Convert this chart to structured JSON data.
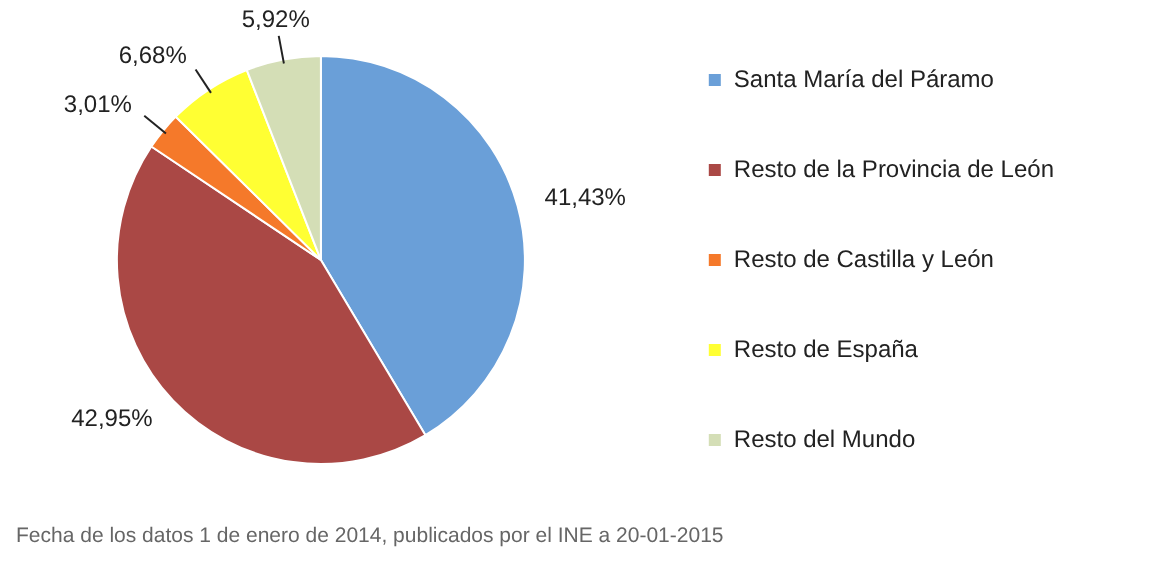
{
  "chart_data": {
    "type": "pie",
    "categories": [
      "Santa María del Páramo",
      "Resto de la Provincia de León",
      "Resto de Castilla y León",
      "Resto de España",
      "Resto del Mundo"
    ],
    "values": [
      41.43,
      42.95,
      3.01,
      6.68,
      5.92
    ],
    "colors": [
      "#6a9fd8",
      "#aa4845",
      "#f5792a",
      "#ffff33",
      "#d4deb6"
    ],
    "value_labels": [
      "41,43%",
      "42,95%",
      "3,01%",
      "6,68%",
      "5,92%"
    ],
    "legend": "right",
    "annotations": [
      "Fecha de los datos 1 de enero de 2014, publicados por el INE a 20-01-2015"
    ]
  }
}
